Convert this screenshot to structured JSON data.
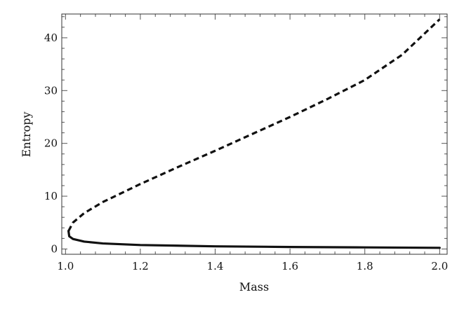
{
  "chart_data": {
    "type": "line",
    "title": "",
    "xlabel": "Mass",
    "ylabel": "Entropy",
    "xlim": [
      0.99,
      2.02
    ],
    "ylim": [
      -1,
      44.5
    ],
    "x_ticks": [
      1.0,
      1.2,
      1.4,
      1.6,
      1.8,
      2.0
    ],
    "x_tick_labels": [
      "1.0",
      "1.2",
      "1.4",
      "1.6",
      "1.8",
      "2.0"
    ],
    "y_ticks": [
      0,
      10,
      20,
      30,
      40
    ],
    "y_tick_labels": [
      "0",
      "10",
      "20",
      "30",
      "40"
    ],
    "grid": false,
    "legend": "none",
    "series": [
      {
        "style": "dashed",
        "color": "#111111",
        "points": [
          [
            1.008,
            3.4
          ],
          [
            1.02,
            5.0
          ],
          [
            1.05,
            6.8
          ],
          [
            1.1,
            8.9
          ],
          [
            1.2,
            12.3
          ],
          [
            1.3,
            15.5
          ],
          [
            1.4,
            18.6
          ],
          [
            1.5,
            21.8
          ],
          [
            1.6,
            25.0
          ],
          [
            1.7,
            28.4
          ],
          [
            1.8,
            32.0
          ],
          [
            1.9,
            36.8
          ],
          [
            2.0,
            43.5
          ]
        ]
      },
      {
        "style": "solid",
        "color": "#111111",
        "points": [
          [
            1.008,
            3.4
          ],
          [
            1.01,
            2.4
          ],
          [
            1.02,
            1.9
          ],
          [
            1.05,
            1.4
          ],
          [
            1.1,
            1.05
          ],
          [
            1.2,
            0.75
          ],
          [
            1.4,
            0.5
          ],
          [
            1.6,
            0.38
          ],
          [
            1.8,
            0.3
          ],
          [
            2.0,
            0.22
          ]
        ]
      }
    ]
  }
}
